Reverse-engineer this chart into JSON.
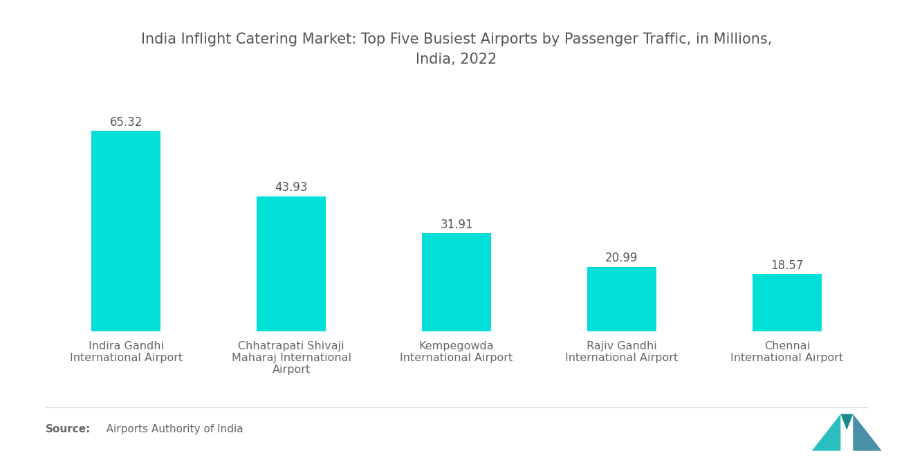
{
  "title": "India Inflight Catering Market: Top Five Busiest Airports by Passenger Traffic, in Millions,\nIndia, 2022",
  "categories": [
    "Indira Gandhi\nInternational Airport",
    "Chhatrapati Shivaji\nMaharaj International\nAirport",
    "Kempegowda\nInternational Airport",
    "Rajiv Gandhi\nInternational Airport",
    "Chennai\nInternational Airport"
  ],
  "values": [
    65.32,
    43.93,
    31.91,
    20.99,
    18.57
  ],
  "bar_color": "#00E0D8",
  "value_labels": [
    "65.32",
    "43.93",
    "31.91",
    "20.99",
    "18.57"
  ],
  "source_bold": "Source:",
  "source_normal": "   Airports Authority of India",
  "title_fontsize": 15,
  "label_fontsize": 11.5,
  "value_fontsize": 12,
  "source_fontsize": 11,
  "background_color": "#ffffff",
  "title_color": "#555555",
  "label_color": "#666666",
  "value_color": "#555555",
  "ylim": [
    0,
    78
  ]
}
